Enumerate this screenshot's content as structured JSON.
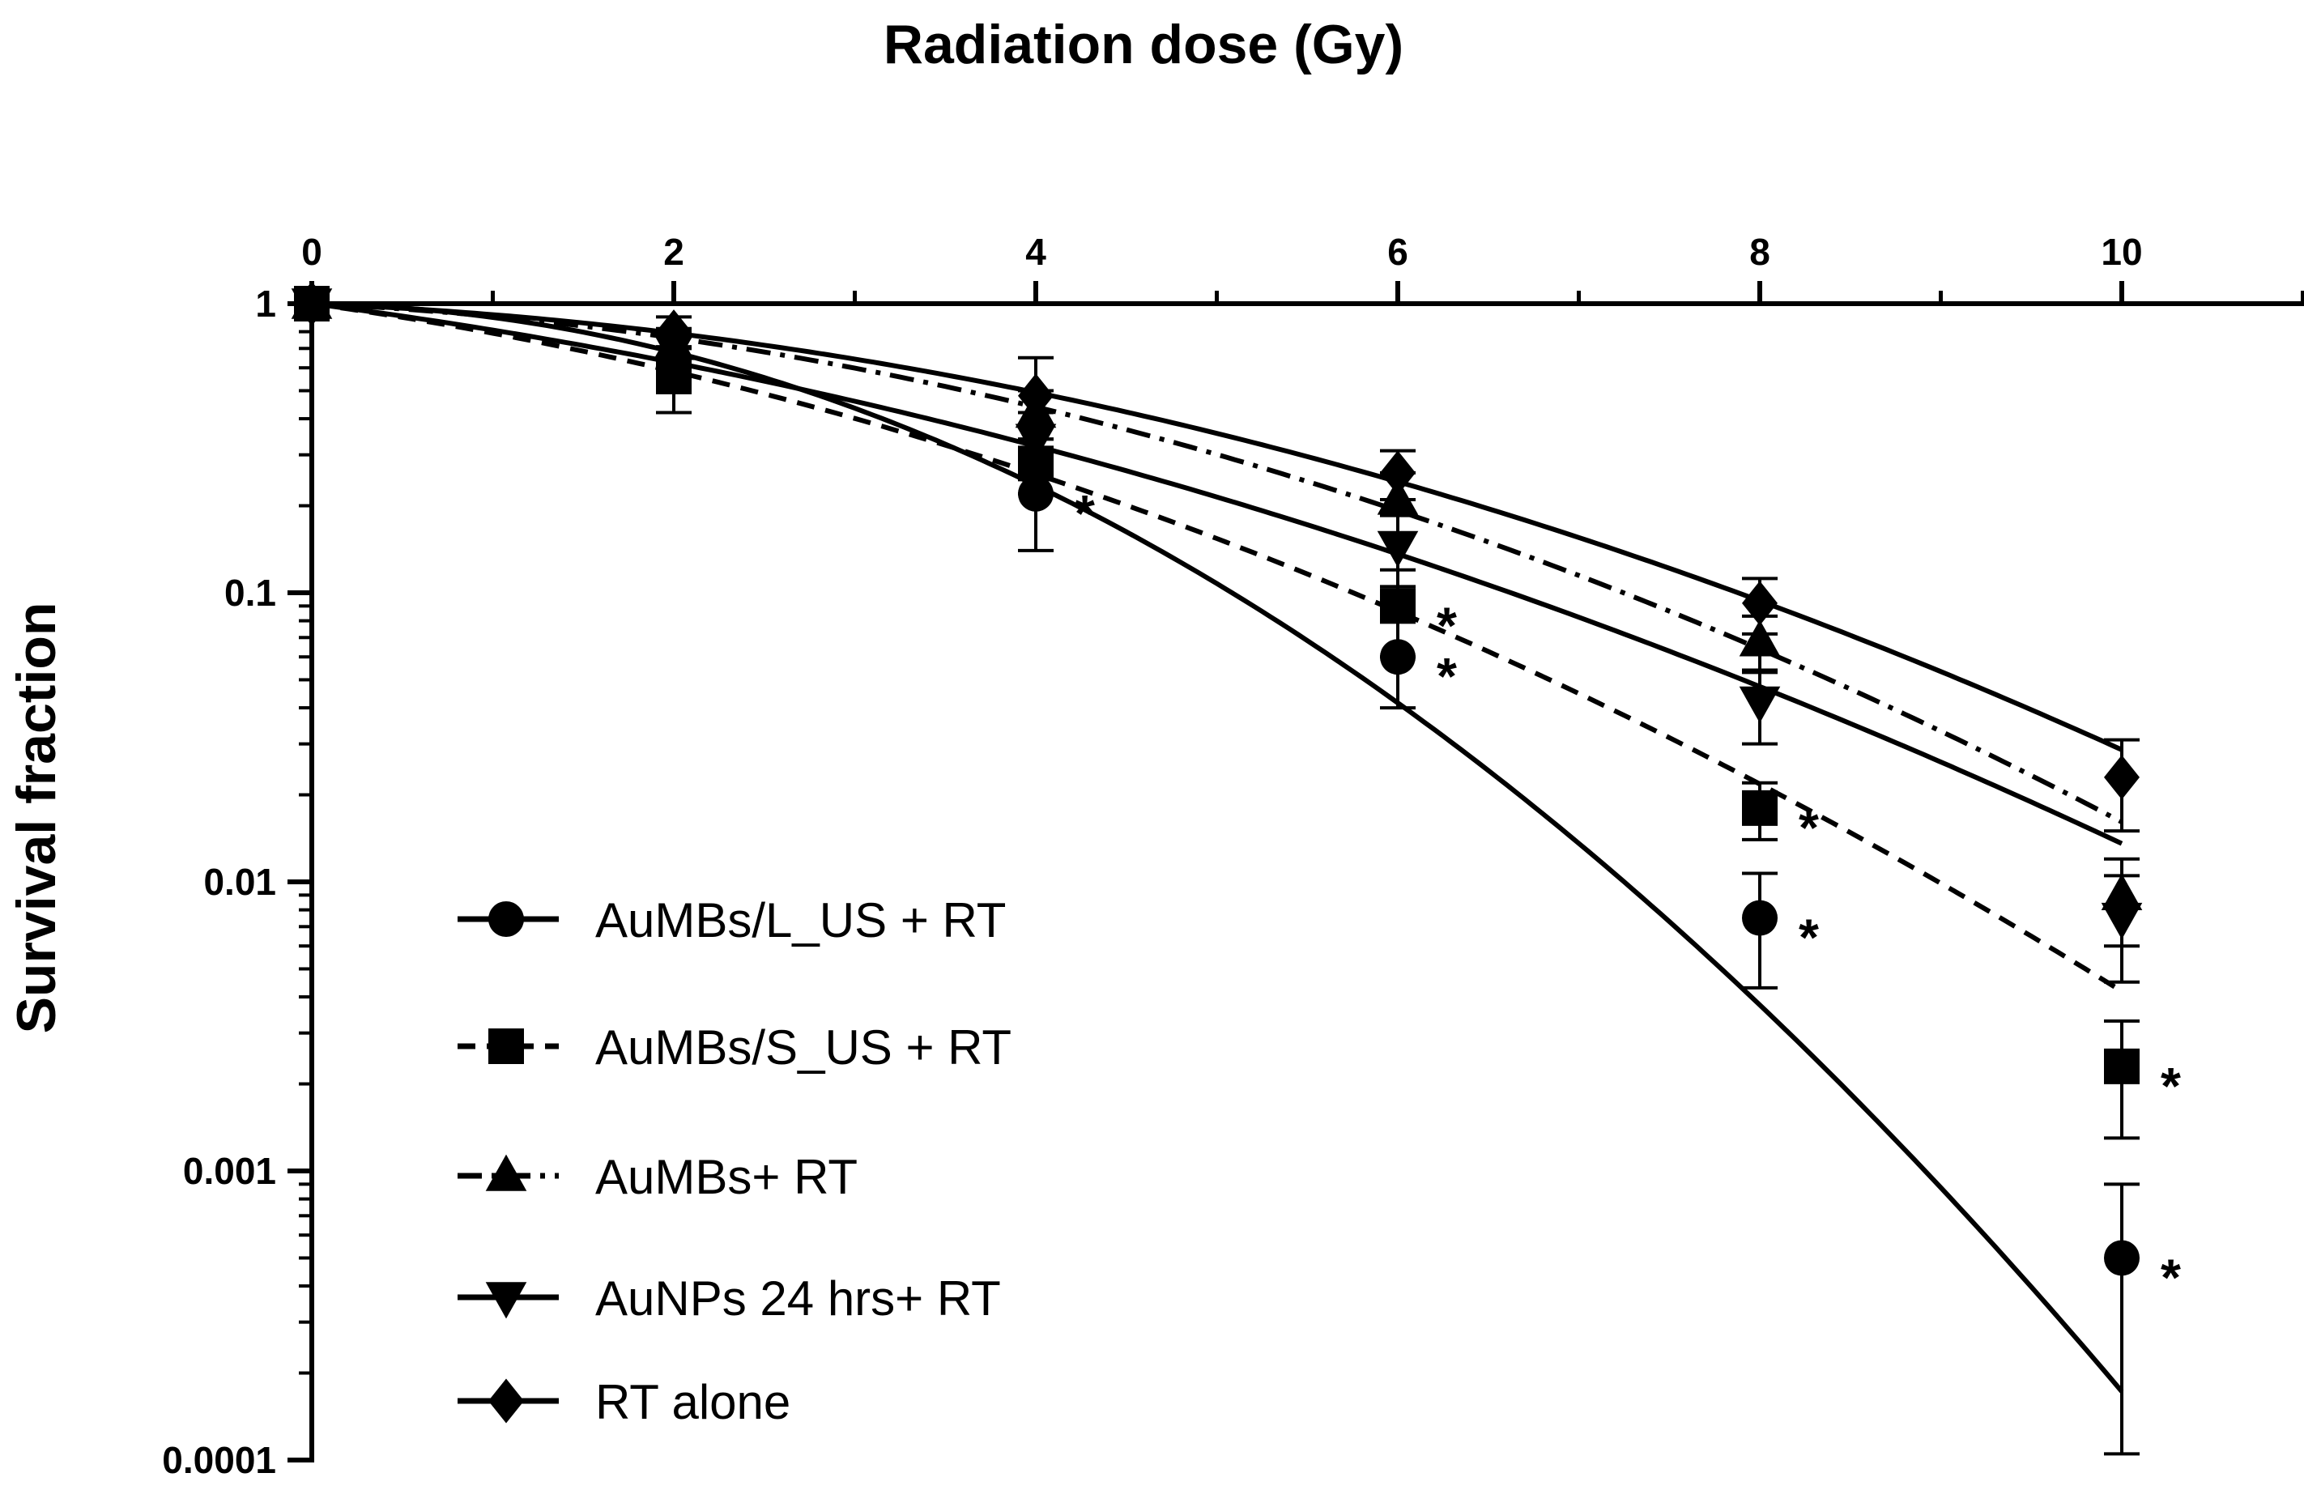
{
  "chart_data": {
    "type": "scatter",
    "title": "Radiation dose (Gy)",
    "xlabel": "Radiation dose (Gy)",
    "ylabel": "Survival fraction",
    "xlim": [
      0,
      11
    ],
    "ylim": [
      0.0001,
      1
    ],
    "yscale": "log",
    "x_axis_position": "top",
    "x_ticks": [
      0,
      2,
      4,
      6,
      8,
      10
    ],
    "x_tick_labels": [
      "0",
      "2",
      "4",
      "6",
      "8",
      "10"
    ],
    "x_minor_ticks": [
      1,
      3,
      5,
      7,
      9,
      11
    ],
    "y_ticks": [
      1,
      0.1,
      0.01,
      0.001,
      0.0001
    ],
    "y_tick_labels": [
      "1",
      "0.1",
      "0.01",
      "0.001",
      "0.0001"
    ],
    "grid": false,
    "legend_position": "bottom-left",
    "significance_marker": "*",
    "series": [
      {
        "name": "AuMBs/L_US + RT",
        "marker": "circle",
        "fit_line": "solid",
        "x": [
          0,
          2,
          4,
          6,
          8,
          10
        ],
        "y": [
          1,
          0.63,
          0.22,
          0.06,
          0.0075,
          0.0005
        ],
        "err": [
          0,
          0.08,
          0.08,
          0.02,
          0.0032,
          0.0004
        ],
        "significant": [
          false,
          false,
          true,
          true,
          true,
          true
        ],
        "fit": [
          1,
          0.66,
          0.23,
          0.043,
          0.0038,
          0.00017
        ]
      },
      {
        "name": "AuMBs/S_US + RT",
        "marker": "square",
        "fit_line": "dashed",
        "x": [
          0,
          2,
          4,
          6,
          8,
          10
        ],
        "y": [
          1,
          0.56,
          0.28,
          0.09,
          0.018,
          0.0023
        ],
        "err": [
          0,
          0.14,
          0.06,
          0.03,
          0.004,
          0.001
        ],
        "significant": [
          false,
          false,
          false,
          true,
          true,
          true
        ],
        "fit": [
          1,
          0.6,
          0.26,
          0.083,
          0.022,
          0.0042
        ]
      },
      {
        "name": "AuMBs+ RT",
        "marker": "triangle-up",
        "fit_line": "dash-dot",
        "x": [
          0,
          2,
          4,
          6,
          8,
          10
        ],
        "y": [
          1,
          0.72,
          0.42,
          0.21,
          0.068,
          0.009
        ],
        "err": [
          0,
          0.1,
          0.08,
          0.05,
          0.015,
          0.003
        ],
        "significant": [
          false,
          false,
          false,
          false,
          false,
          false
        ],
        "fit": [
          1,
          0.76,
          0.44,
          0.19,
          0.065,
          0.016
        ]
      },
      {
        "name": "AuNPs 24 hrs+ RT",
        "marker": "triangle-down",
        "fit_line": "solid",
        "x": [
          0,
          2,
          4,
          6,
          8,
          10
        ],
        "y": [
          1,
          0.7,
          0.34,
          0.145,
          0.042,
          0.0075
        ],
        "err": [
          0,
          0.1,
          0.08,
          0.04,
          0.012,
          0.003
        ],
        "significant": [
          false,
          false,
          false,
          false,
          false,
          false
        ],
        "fit": [
          1,
          0.63,
          0.32,
          0.135,
          0.048,
          0.0135
        ]
      },
      {
        "name": "RT alone",
        "marker": "diamond",
        "fit_line": "solid",
        "x": [
          0,
          2,
          4,
          6,
          8,
          10
        ],
        "y": [
          1,
          0.8,
          0.48,
          0.26,
          0.092,
          0.023
        ],
        "err": [
          0,
          0.1,
          0.17,
          0.05,
          0.02,
          0.008
        ],
        "significant": [
          false,
          false,
          false,
          false,
          false,
          false
        ],
        "fit": [
          1,
          0.8,
          0.5,
          0.24,
          0.092,
          0.029
        ]
      }
    ]
  }
}
